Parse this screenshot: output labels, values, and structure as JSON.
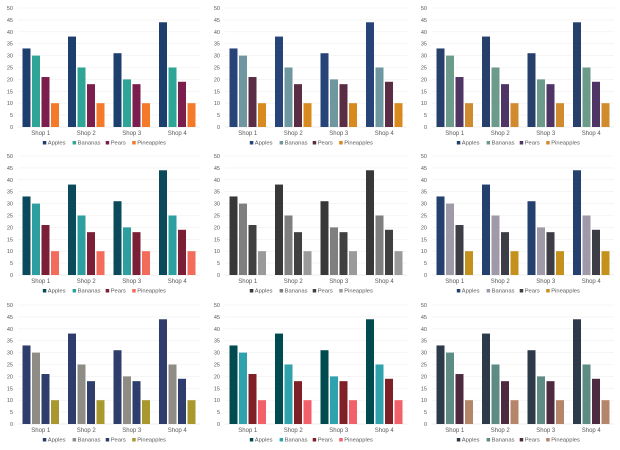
{
  "chart_data": [
    {
      "type": "bar",
      "categories": [
        "Shop 1",
        "Shop 2",
        "Shop 3",
        "Shop 4"
      ],
      "ylim": [
        0,
        50
      ],
      "yticks": [
        0,
        5,
        10,
        15,
        20,
        25,
        30,
        35,
        40,
        45,
        50
      ],
      "grid": true,
      "legend": "bottom",
      "series": [
        {
          "name": "Apples",
          "values": [
            33,
            38,
            31,
            44
          ]
        },
        {
          "name": "Bananas",
          "values": [
            30,
            25,
            20,
            25
          ]
        },
        {
          "name": "Pears",
          "values": [
            21,
            18,
            18,
            19
          ]
        },
        {
          "name": "Pineapples",
          "values": [
            10,
            10,
            10,
            10
          ]
        }
      ],
      "colors": [
        "#1d3f6e",
        "#2ea597",
        "#7b1e4e",
        "#f47a2a"
      ]
    },
    {
      "type": "bar",
      "categories": [
        "Shop 1",
        "Shop 2",
        "Shop 3",
        "Shop 4"
      ],
      "ylim": [
        0,
        50
      ],
      "yticks": [
        0,
        5,
        10,
        15,
        20,
        25,
        30,
        35,
        40,
        45,
        50
      ],
      "grid": true,
      "legend": "bottom",
      "series": [
        {
          "name": "Apples",
          "values": [
            33,
            38,
            31,
            44
          ]
        },
        {
          "name": "Bananas",
          "values": [
            30,
            25,
            20,
            25
          ]
        },
        {
          "name": "Pears",
          "values": [
            21,
            18,
            18,
            19
          ]
        },
        {
          "name": "Pineapples",
          "values": [
            10,
            10,
            10,
            10
          ]
        }
      ],
      "colors": [
        "#264478",
        "#6e97a0",
        "#5a2d45",
        "#d98a1e"
      ]
    },
    {
      "type": "bar",
      "categories": [
        "Shop 1",
        "Shop 2",
        "Shop 3",
        "Shop 4"
      ],
      "ylim": [
        0,
        50
      ],
      "yticks": [
        0,
        5,
        10,
        15,
        20,
        25,
        30,
        35,
        40,
        45,
        50
      ],
      "grid": true,
      "legend": "bottom",
      "series": [
        {
          "name": "Apples",
          "values": [
            33,
            38,
            31,
            44
          ]
        },
        {
          "name": "Bananas",
          "values": [
            30,
            25,
            20,
            25
          ]
        },
        {
          "name": "Pears",
          "values": [
            21,
            18,
            18,
            19
          ]
        },
        {
          "name": "Pineapples",
          "values": [
            10,
            10,
            10,
            10
          ]
        }
      ],
      "colors": [
        "#27406b",
        "#6c9a8b",
        "#4f3466",
        "#d08b2e"
      ]
    },
    {
      "type": "bar",
      "categories": [
        "Shop 1",
        "Shop 2",
        "Shop 3",
        "Shop 4"
      ],
      "ylim": [
        0,
        50
      ],
      "yticks": [
        0,
        5,
        10,
        15,
        20,
        25,
        30,
        35,
        40,
        45,
        50
      ],
      "grid": true,
      "legend": "bottom",
      "series": [
        {
          "name": "Apples",
          "values": [
            33,
            38,
            31,
            44
          ]
        },
        {
          "name": "Bananas",
          "values": [
            30,
            25,
            20,
            25
          ]
        },
        {
          "name": "Pears",
          "values": [
            21,
            18,
            18,
            19
          ]
        },
        {
          "name": "Pineapples",
          "values": [
            10,
            10,
            10,
            10
          ]
        }
      ],
      "colors": [
        "#0b4a5a",
        "#2e9fa0",
        "#7a1f35",
        "#f26b5b"
      ]
    },
    {
      "type": "bar",
      "categories": [
        "Shop 1",
        "Shop 2",
        "Shop 3",
        "Shop 4"
      ],
      "ylim": [
        0,
        50
      ],
      "yticks": [
        0,
        5,
        10,
        15,
        20,
        25,
        30,
        35,
        40,
        45,
        50
      ],
      "grid": true,
      "legend": "bottom",
      "series": [
        {
          "name": "Apples",
          "values": [
            33,
            38,
            31,
            44
          ]
        },
        {
          "name": "Bananas",
          "values": [
            30,
            25,
            20,
            25
          ]
        },
        {
          "name": "Pears",
          "values": [
            21,
            18,
            18,
            19
          ]
        },
        {
          "name": "Pineapples",
          "values": [
            10,
            10,
            10,
            10
          ]
        }
      ],
      "colors": [
        "#383838",
        "#7f7f7f",
        "#404040",
        "#9a9a9a"
      ]
    },
    {
      "type": "bar",
      "categories": [
        "Shop 1",
        "Shop 2",
        "Shop 3",
        "Shop 4"
      ],
      "ylim": [
        0,
        50
      ],
      "yticks": [
        0,
        5,
        10,
        15,
        20,
        25,
        30,
        35,
        40,
        45,
        50
      ],
      "grid": true,
      "legend": "bottom",
      "series": [
        {
          "name": "Apples",
          "values": [
            33,
            38,
            31,
            44
          ]
        },
        {
          "name": "Bananas",
          "values": [
            30,
            25,
            20,
            25
          ]
        },
        {
          "name": "Pears",
          "values": [
            21,
            18,
            18,
            19
          ]
        },
        {
          "name": "Pineapples",
          "values": [
            10,
            10,
            10,
            10
          ]
        }
      ],
      "colors": [
        "#23406e",
        "#a09aa8",
        "#3d3d45",
        "#c4921c"
      ]
    },
    {
      "type": "bar",
      "categories": [
        "Shop 1",
        "Shop 2",
        "Shop 3",
        "Shop 4"
      ],
      "ylim": [
        0,
        50
      ],
      "yticks": [
        0,
        5,
        10,
        15,
        20,
        25,
        30,
        35,
        40,
        45,
        50
      ],
      "grid": true,
      "legend": "bottom",
      "series": [
        {
          "name": "Apples",
          "values": [
            33,
            38,
            31,
            44
          ]
        },
        {
          "name": "Bananas",
          "values": [
            30,
            25,
            20,
            25
          ]
        },
        {
          "name": "Pears",
          "values": [
            21,
            18,
            18,
            19
          ]
        },
        {
          "name": "Pineapples",
          "values": [
            10,
            10,
            10,
            10
          ]
        }
      ],
      "colors": [
        "#2e3d6b",
        "#8f8c86",
        "#2e3d6b",
        "#a8982e"
      ]
    },
    {
      "type": "bar",
      "categories": [
        "Shop 1",
        "Shop 2",
        "Shop 3",
        "Shop 4"
      ],
      "ylim": [
        0,
        50
      ],
      "yticks": [
        0,
        5,
        10,
        15,
        20,
        25,
        30,
        35,
        40,
        45,
        50
      ],
      "grid": true,
      "legend": "bottom",
      "series": [
        {
          "name": "Apples",
          "values": [
            33,
            38,
            31,
            44
          ]
        },
        {
          "name": "Bananas",
          "values": [
            30,
            25,
            20,
            25
          ]
        },
        {
          "name": "Pears",
          "values": [
            21,
            18,
            18,
            19
          ]
        },
        {
          "name": "Pineapples",
          "values": [
            10,
            10,
            10,
            10
          ]
        }
      ],
      "colors": [
        "#004b4f",
        "#2fa3ad",
        "#7f1f26",
        "#f2606a"
      ]
    },
    {
      "type": "bar",
      "categories": [
        "Shop 1",
        "Shop 2",
        "Shop 3",
        "Shop 4"
      ],
      "ylim": [
        0,
        50
      ],
      "yticks": [
        0,
        5,
        10,
        15,
        20,
        25,
        30,
        35,
        40,
        45,
        50
      ],
      "grid": true,
      "legend": "bottom",
      "series": [
        {
          "name": "Apples",
          "values": [
            33,
            38,
            31,
            44
          ]
        },
        {
          "name": "Bananas",
          "values": [
            30,
            25,
            20,
            25
          ]
        },
        {
          "name": "Pears",
          "values": [
            21,
            18,
            18,
            19
          ]
        },
        {
          "name": "Pineapples",
          "values": [
            10,
            10,
            10,
            10
          ]
        }
      ],
      "colors": [
        "#2c3a4a",
        "#5e8c84",
        "#4e2a40",
        "#b5856a"
      ]
    }
  ]
}
